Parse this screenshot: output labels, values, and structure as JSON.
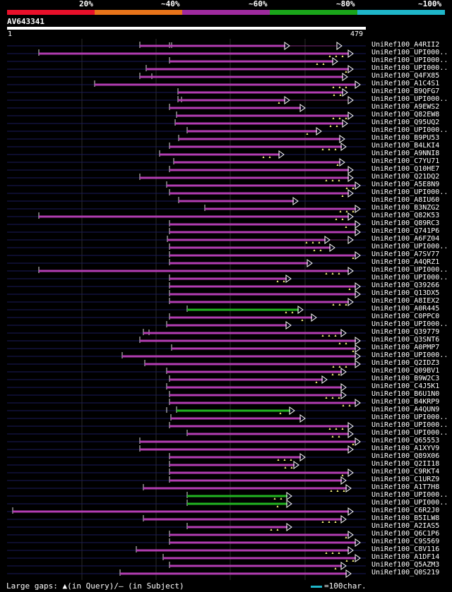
{
  "header": {
    "legend": [
      {
        "label": "20%",
        "color": "#e8102a"
      },
      {
        "label": "~40%",
        "color": "#e8741a"
      },
      {
        "label": "~60%",
        "color": "#9e2a9e"
      },
      {
        "label": "~80%",
        "color": "#1aa51a"
      },
      {
        "label": "~100%",
        "color": "#1fb6c9"
      }
    ],
    "query_id": "AV643341",
    "ruler_start": "1",
    "ruler_end": "479"
  },
  "colors": {
    "magenta": "#b23db2",
    "green": "#22b522",
    "line": "#1a1a5a",
    "pinkline": "#7a2a7a",
    "gap": "#fffb80"
  },
  "hits": [
    {
      "label": "UniRef100_A4RII2",
      "color": "magenta",
      "start": 198,
      "end": 484,
      "arrows": [
        410,
        484
      ],
      "ticks": [
        240,
        243
      ]
    },
    {
      "label": "UniRef100_UPI000..",
      "color": "magenta",
      "start": 55,
      "end": 500,
      "arrows": [
        500
      ],
      "ticks": []
    },
    {
      "label": "UniRef100_UPI000..",
      "color": "magenta",
      "start": 240,
      "end": 478,
      "arrows": [
        478
      ],
      "ticks": []
    },
    {
      "label": "UniRef100_UPI000..",
      "color": "magenta",
      "start": 207,
      "end": 500,
      "arrows": [
        500
      ],
      "ticks": []
    },
    {
      "label": "UniRef100_Q4FX85",
      "color": "magenta",
      "start": 198,
      "end": 492,
      "arrows": [
        492
      ],
      "ticks": [
        215
      ]
    },
    {
      "label": "UniRef100_A1C4S1",
      "color": "magenta",
      "start": 134,
      "end": 510,
      "arrows": [
        510
      ],
      "ticks": []
    },
    {
      "label": "UniRef100_B9QFG7",
      "color": "magenta",
      "start": 252,
      "end": 492,
      "arrows": [
        492
      ],
      "ticks": []
    },
    {
      "label": "UniRef100_UPI000..",
      "color": "magenta",
      "start": 252,
      "end": 500,
      "arrows": [
        410,
        500
      ],
      "ticks": [
        257
      ]
    },
    {
      "label": "UniRef100_A9EWS2",
      "color": "magenta",
      "start": 240,
      "end": 432,
      "arrows": [
        432
      ],
      "ticks": []
    },
    {
      "label": "UniRef100_Q82EW8",
      "color": "magenta",
      "start": 250,
      "end": 500,
      "arrows": [
        500
      ],
      "ticks": []
    },
    {
      "label": "UniRef100_Q95UQ2",
      "color": "magenta",
      "start": 248,
      "end": 492,
      "arrows": [
        492
      ],
      "ticks": []
    },
    {
      "label": "UniRef100_UPI000..",
      "color": "magenta",
      "start": 265,
      "end": 455,
      "arrows": [
        455
      ],
      "ticks": []
    },
    {
      "label": "UniRef100_B9PU53",
      "color": "magenta",
      "start": 253,
      "end": 488,
      "arrows": [
        488
      ],
      "ticks": []
    },
    {
      "label": "UniRef100_B4LKI4",
      "color": "magenta",
      "start": 240,
      "end": 490,
      "arrows": [
        490
      ],
      "ticks": []
    },
    {
      "label": "UniRef100_A9NNI8",
      "color": "magenta",
      "start": 226,
      "end": 402,
      "arrows": [
        402
      ],
      "ticks": []
    },
    {
      "label": "UniRef100_C7YU71",
      "color": "magenta",
      "start": 246,
      "end": 488,
      "arrows": [
        488
      ],
      "ticks": []
    },
    {
      "label": "UniRef100_Q10HE7",
      "color": "magenta",
      "start": 240,
      "end": 500,
      "arrows": [
        500
      ],
      "ticks": []
    },
    {
      "label": "UniRef100_Q21DQ2",
      "color": "magenta",
      "start": 198,
      "end": 500,
      "arrows": [
        500
      ],
      "ticks": []
    },
    {
      "label": "UniRef100_A5E8N9",
      "color": "magenta",
      "start": 236,
      "end": 510,
      "arrows": [
        510
      ],
      "ticks": []
    },
    {
      "label": "UniRef100_UPI000..",
      "color": "magenta",
      "start": 240,
      "end": 500,
      "arrows": [
        500
      ],
      "ticks": []
    },
    {
      "label": "UniRef100_A8IU60",
      "color": "magenta",
      "start": 253,
      "end": 422,
      "arrows": [
        422
      ],
      "ticks": []
    },
    {
      "label": "UniRef100_B3NZG2",
      "color": "magenta",
      "start": 290,
      "end": 510,
      "arrows": [
        510
      ],
      "ticks": []
    },
    {
      "label": "UniRef100_Q82K53",
      "color": "magenta",
      "start": 55,
      "end": 500,
      "arrows": [
        500
      ],
      "ticks": []
    },
    {
      "label": "UniRef100_Q89RC3",
      "color": "magenta",
      "start": 240,
      "end": 510,
      "arrows": [
        510
      ],
      "ticks": []
    },
    {
      "label": "UniRef100_Q741P6",
      "color": "magenta",
      "start": 240,
      "end": 510,
      "arrows": [
        510
      ],
      "ticks": []
    },
    {
      "label": "UniRef100_A6FZ04",
      "color": "magenta",
      "start": 237,
      "end": 500,
      "arrows": [
        467,
        500
      ],
      "ticks": []
    },
    {
      "label": "UniRef100_UPI000..",
      "color": "magenta",
      "start": 240,
      "end": 474,
      "arrows": [
        474
      ],
      "ticks": []
    },
    {
      "label": "UniRef100_A7SV77",
      "color": "magenta",
      "start": 240,
      "end": 510,
      "arrows": [
        510
      ],
      "ticks": []
    },
    {
      "label": "UniRef100_A4QRZ1",
      "color": "magenta",
      "start": 240,
      "end": 442,
      "arrows": [
        442
      ],
      "ticks": []
    },
    {
      "label": "UniRef100_UPI000..",
      "color": "magenta",
      "start": 55,
      "end": 500,
      "arrows": [
        500
      ],
      "ticks": []
    },
    {
      "label": "UniRef100_UPI000..",
      "color": "magenta",
      "start": 240,
      "end": 412,
      "arrows": [
        412
      ],
      "ticks": []
    },
    {
      "label": "UniRef100_Q39266",
      "color": "magenta",
      "start": 240,
      "end": 510,
      "arrows": [
        510
      ],
      "ticks": []
    },
    {
      "label": "UniRef100_Q13DX5",
      "color": "magenta",
      "start": 240,
      "end": 510,
      "arrows": [
        510
      ],
      "ticks": []
    },
    {
      "label": "UniRef100_A8IEX2",
      "color": "magenta",
      "start": 240,
      "end": 500,
      "arrows": [
        500
      ],
      "ticks": []
    },
    {
      "label": "UniRef100_A0R445",
      "color": "green",
      "start": 265,
      "end": 429,
      "arrows": [
        429
      ],
      "ticks": []
    },
    {
      "label": "UniRef100_C0PPC0",
      "color": "magenta",
      "start": 240,
      "end": 448,
      "arrows": [
        448
      ],
      "ticks": []
    },
    {
      "label": "UniRef100_UPI000..",
      "color": "magenta",
      "start": 236,
      "end": 412,
      "arrows": [
        412
      ],
      "ticks": []
    },
    {
      "label": "UniRef100_Q39779",
      "color": "magenta",
      "start": 203,
      "end": 490,
      "arrows": [
        490
      ],
      "ticks": [
        211
      ]
    },
    {
      "label": "UniRef100_Q3SNT6",
      "color": "magenta",
      "start": 198,
      "end": 510,
      "arrows": [
        510
      ],
      "ticks": []
    },
    {
      "label": "UniRef100_A0PMP7",
      "color": "magenta",
      "start": 243,
      "end": 510,
      "arrows": [
        510
      ],
      "ticks": []
    },
    {
      "label": "UniRef100_UPI000..",
      "color": "magenta",
      "start": 173,
      "end": 510,
      "arrows": [
        510
      ],
      "ticks": []
    },
    {
      "label": "UniRef100_Q2IDZ3",
      "color": "magenta",
      "start": 205,
      "end": 510,
      "arrows": [
        510
      ],
      "ticks": []
    },
    {
      "label": "UniRef100_Q09BV1",
      "color": "magenta",
      "start": 236,
      "end": 490,
      "arrows": [
        490
      ],
      "ticks": []
    },
    {
      "label": "UniRef100_B9W2C3",
      "color": "magenta",
      "start": 240,
      "end": 463,
      "arrows": [
        463
      ],
      "ticks": []
    },
    {
      "label": "UniRef100_C4J5K1",
      "color": "magenta",
      "start": 236,
      "end": 490,
      "arrows": [
        490
      ],
      "ticks": []
    },
    {
      "label": "UniRef100_B6U1N0",
      "color": "magenta",
      "start": 240,
      "end": 490,
      "arrows": [
        490
      ],
      "ticks": []
    },
    {
      "label": "UniRef100_B4KRP9",
      "color": "magenta",
      "start": 240,
      "end": 510,
      "arrows": [
        510
      ],
      "ticks": []
    },
    {
      "label": "UniRef100_A4QUN9",
      "color": "green",
      "start": 250,
      "end": 417,
      "arrows": [
        417
      ],
      "ticks": [
        236
      ]
    },
    {
      "label": "UniRef100_UPI000..",
      "color": "magenta",
      "start": 242,
      "end": 432,
      "arrows": [
        432
      ],
      "ticks": []
    },
    {
      "label": "UniRef100_UPI000..",
      "color": "magenta",
      "start": 240,
      "end": 500,
      "arrows": [
        500
      ],
      "ticks": []
    },
    {
      "label": "UniRef100_UPI000..",
      "color": "magenta",
      "start": 265,
      "end": 500,
      "arrows": [
        500
      ],
      "ticks": []
    },
    {
      "label": "UniRef100_Q65553",
      "color": "magenta",
      "start": 198,
      "end": 510,
      "arrows": [
        510
      ],
      "ticks": []
    },
    {
      "label": "UniRef100_A1XYV9",
      "color": "magenta",
      "start": 198,
      "end": 500,
      "arrows": [
        500
      ],
      "ticks": []
    },
    {
      "label": "UniRef100_Q89X06",
      "color": "magenta",
      "start": 240,
      "end": 432,
      "arrows": [
        432
      ],
      "ticks": []
    },
    {
      "label": "UniRef100_Q2II18",
      "color": "magenta",
      "start": 240,
      "end": 423,
      "arrows": [
        423
      ],
      "ticks": []
    },
    {
      "label": "UniRef100_C9RKT4",
      "color": "magenta",
      "start": 240,
      "end": 500,
      "arrows": [
        500
      ],
      "ticks": []
    },
    {
      "label": "UniRef100_C1URZ9",
      "color": "magenta",
      "start": 240,
      "end": 490,
      "arrows": [
        490
      ],
      "ticks": []
    },
    {
      "label": "UniRef100_A1T7H8",
      "color": "magenta",
      "start": 203,
      "end": 497,
      "arrows": [
        497
      ],
      "ticks": []
    },
    {
      "label": "UniRef100_UPI000..",
      "color": "green",
      "start": 265,
      "end": 413,
      "arrows": [
        413
      ],
      "ticks": []
    },
    {
      "label": "UniRef100_UPI000..",
      "color": "green",
      "start": 265,
      "end": 413,
      "arrows": [
        413
      ],
      "ticks": []
    },
    {
      "label": "UniRef100_C6R2J0",
      "color": "magenta",
      "start": 18,
      "end": 500,
      "arrows": [
        500
      ],
      "ticks": []
    },
    {
      "label": "UniRef100_B5ILW8",
      "color": "magenta",
      "start": 203,
      "end": 490,
      "arrows": [
        490
      ],
      "ticks": []
    },
    {
      "label": "UniRef100_A2IAS5",
      "color": "magenta",
      "start": 265,
      "end": 413,
      "arrows": [
        413
      ],
      "ticks": []
    },
    {
      "label": "UniRef100_Q6C1P6",
      "color": "magenta",
      "start": 240,
      "end": 500,
      "arrows": [
        500
      ],
      "ticks": []
    },
    {
      "label": "UniRef100_C9S569",
      "color": "magenta",
      "start": 240,
      "end": 510,
      "arrows": [
        510
      ],
      "ticks": []
    },
    {
      "label": "UniRef100_C8V116",
      "color": "magenta",
      "start": 193,
      "end": 500,
      "arrows": [
        500
      ],
      "ticks": []
    },
    {
      "label": "UniRef100_A1DF14",
      "color": "magenta",
      "start": 231,
      "end": 510,
      "arrows": [
        510
      ],
      "ticks": []
    },
    {
      "label": "UniRef100_Q5AZM3",
      "color": "magenta",
      "start": 240,
      "end": 490,
      "arrows": [
        490
      ],
      "ticks": []
    },
    {
      "label": "UniRef100_Q0S219",
      "color": "magenta",
      "start": 170,
      "end": 497,
      "arrows": [
        497
      ],
      "ticks": []
    }
  ],
  "footer": {
    "gaps_text": "Large gaps: ▲(in Query)/– (in Subject)",
    "scale_text": "=100char."
  }
}
